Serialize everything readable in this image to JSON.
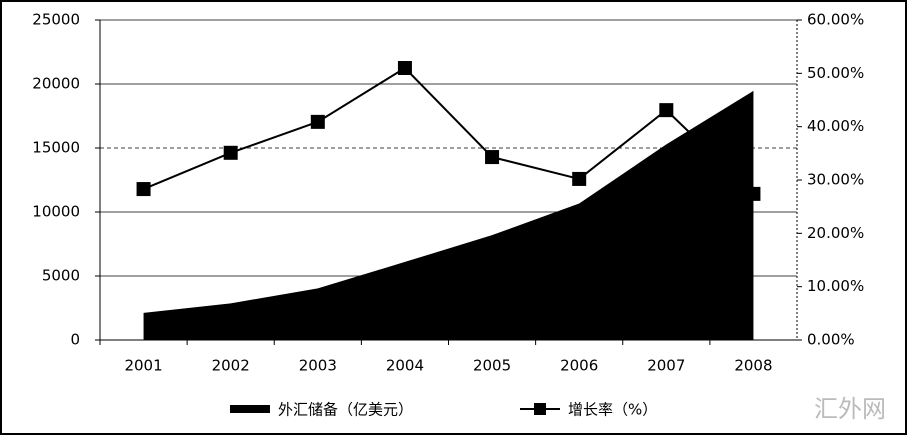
{
  "chart_data": {
    "type": "area-line",
    "categories": [
      "2001",
      "2002",
      "2003",
      "2004",
      "2005",
      "2006",
      "2007",
      "2008"
    ],
    "series": [
      {
        "name": "外汇储备（亿美元）",
        "color": "#000000",
        "type": "area",
        "axis": "y",
        "values": [
          2122,
          2864,
          4033,
          6099,
          8189,
          10663,
          15282,
          19460
        ]
      },
      {
        "name": "增长率（%）",
        "color": "#000000",
        "type": "line",
        "axis": "y2",
        "values": [
          28.3,
          35.1,
          40.9,
          51.0,
          34.3,
          30.2,
          43.1,
          27.4
        ]
      }
    ],
    "ylim": [
      0,
      25000
    ],
    "yticks": [
      0,
      5000,
      10000,
      15000,
      20000,
      25000
    ],
    "y2lim": [
      0,
      60
    ],
    "y2ticks": [
      {
        "value": 0,
        "label": "0.00%"
      },
      {
        "value": 10,
        "label": "10.00%"
      },
      {
        "value": 20,
        "label": "20.00%"
      },
      {
        "value": 30,
        "label": "30.00%"
      },
      {
        "value": 40,
        "label": "40.00%"
      },
      {
        "value": 50,
        "label": "50.00%"
      },
      {
        "value": 60,
        "label": "60.00%"
      }
    ],
    "grid": true,
    "legend": "bottom",
    "watermark": "汇外网"
  }
}
